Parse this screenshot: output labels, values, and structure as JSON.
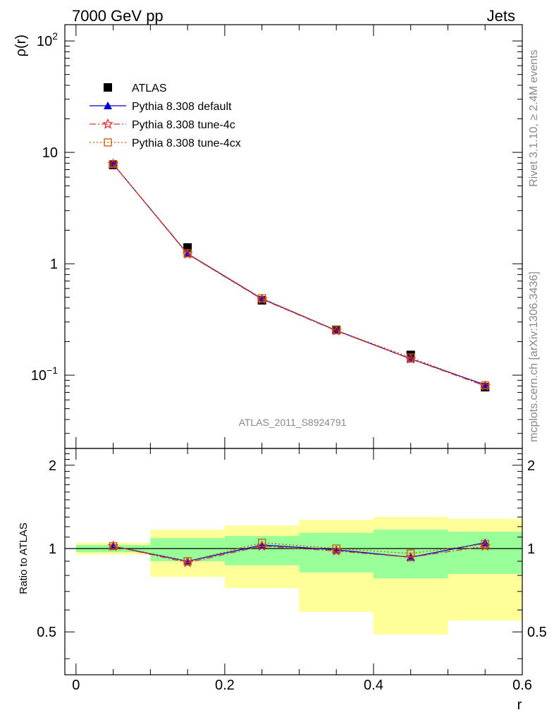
{
  "header": {
    "left": "7000 GeV pp",
    "right": "Jets"
  },
  "side_labels": {
    "rivet": "Rivet 3.1.10, ≥ 2.4M events",
    "mcplots": "mcplots.cern.ch [arXiv:1306.3436]"
  },
  "analysis_id": "ATLAS_2011_S8924791",
  "colors": {
    "atlas": "#000000",
    "default": "#0000cc",
    "tune4c": "#e03030",
    "tune4cx": "#cc5500",
    "band_inner": "#99ff99",
    "band_outer": "#ffff99"
  },
  "chart_data": [
    {
      "type": "line",
      "scale": "log",
      "ylabel": "ρ(r)",
      "xlim": [
        -0.015,
        0.6
      ],
      "ylim": [
        0.022,
        140
      ],
      "x": [
        0.05,
        0.15,
        0.25,
        0.35,
        0.45,
        0.55
      ],
      "yticks": [
        {
          "value": 0.1,
          "base": "10",
          "exp": "−1"
        },
        {
          "value": 1,
          "label": "1"
        },
        {
          "value": 10,
          "label": "10"
        },
        {
          "value": 100,
          "base": "10",
          "exp": "2"
        }
      ],
      "legend": {
        "position": "upper-left",
        "entries": [
          "ATLAS",
          "Pythia 8.308 default",
          "Pythia 8.308 tune-4c",
          "Pythia 8.308 tune-4cx"
        ]
      },
      "series": [
        {
          "name": "ATLAS",
          "marker": "square",
          "values": [
            7.7,
            1.4,
            0.47,
            0.255,
            0.152,
            0.078
          ]
        },
        {
          "name": "Pythia 8.308 default",
          "marker": "triangle",
          "values": [
            7.85,
            1.23,
            0.485,
            0.252,
            0.14,
            0.082
          ]
        },
        {
          "name": "Pythia 8.308 tune-4c",
          "marker": "star",
          "values": [
            7.85,
            1.22,
            0.48,
            0.25,
            0.14,
            0.08
          ]
        },
        {
          "name": "Pythia 8.308 tune-4cx",
          "marker": "open-square",
          "values": [
            7.85,
            1.24,
            0.49,
            0.253,
            0.144,
            0.081
          ]
        }
      ]
    },
    {
      "type": "line",
      "ylabel": "Ratio to ATLAS",
      "xlabel": "r",
      "xlim": [
        -0.015,
        0.6
      ],
      "ylim": [
        0.35,
        2.3
      ],
      "xticks": [
        "0",
        "0.2",
        "0.4",
        "0.6"
      ],
      "xtick_values": [
        0,
        0.2,
        0.4,
        0.6
      ],
      "yticks": [
        "0.5",
        "1",
        "2"
      ],
      "ytick_values": [
        0.5,
        1,
        2
      ],
      "bins": [
        [
          0.0,
          0.1
        ],
        [
          0.1,
          0.2
        ],
        [
          0.2,
          0.3
        ],
        [
          0.3,
          0.4
        ],
        [
          0.4,
          0.5
        ],
        [
          0.5,
          0.6
        ]
      ],
      "band_inner": [
        [
          0.97,
          1.03
        ],
        [
          0.9,
          1.09
        ],
        [
          0.87,
          1.11
        ],
        [
          0.82,
          1.14
        ],
        [
          0.78,
          1.17
        ],
        [
          0.81,
          1.15
        ]
      ],
      "band_outer": [
        [
          0.95,
          1.05
        ],
        [
          0.79,
          1.17
        ],
        [
          0.72,
          1.21
        ],
        [
          0.59,
          1.27
        ],
        [
          0.49,
          1.3
        ],
        [
          0.55,
          1.28
        ]
      ],
      "x": [
        0.05,
        0.15,
        0.25,
        0.35,
        0.45,
        0.55
      ],
      "series": [
        {
          "name": "Pythia 8.308 default",
          "values": [
            1.02,
            0.9,
            1.03,
            0.99,
            0.93,
            1.05
          ]
        },
        {
          "name": "Pythia 8.308 tune-4c",
          "values": [
            1.02,
            0.89,
            1.02,
            0.98,
            0.93,
            1.02
          ]
        },
        {
          "name": "Pythia 8.308 tune-4cx",
          "values": [
            1.02,
            0.9,
            1.05,
            1.0,
            0.96,
            1.04
          ]
        }
      ]
    }
  ]
}
